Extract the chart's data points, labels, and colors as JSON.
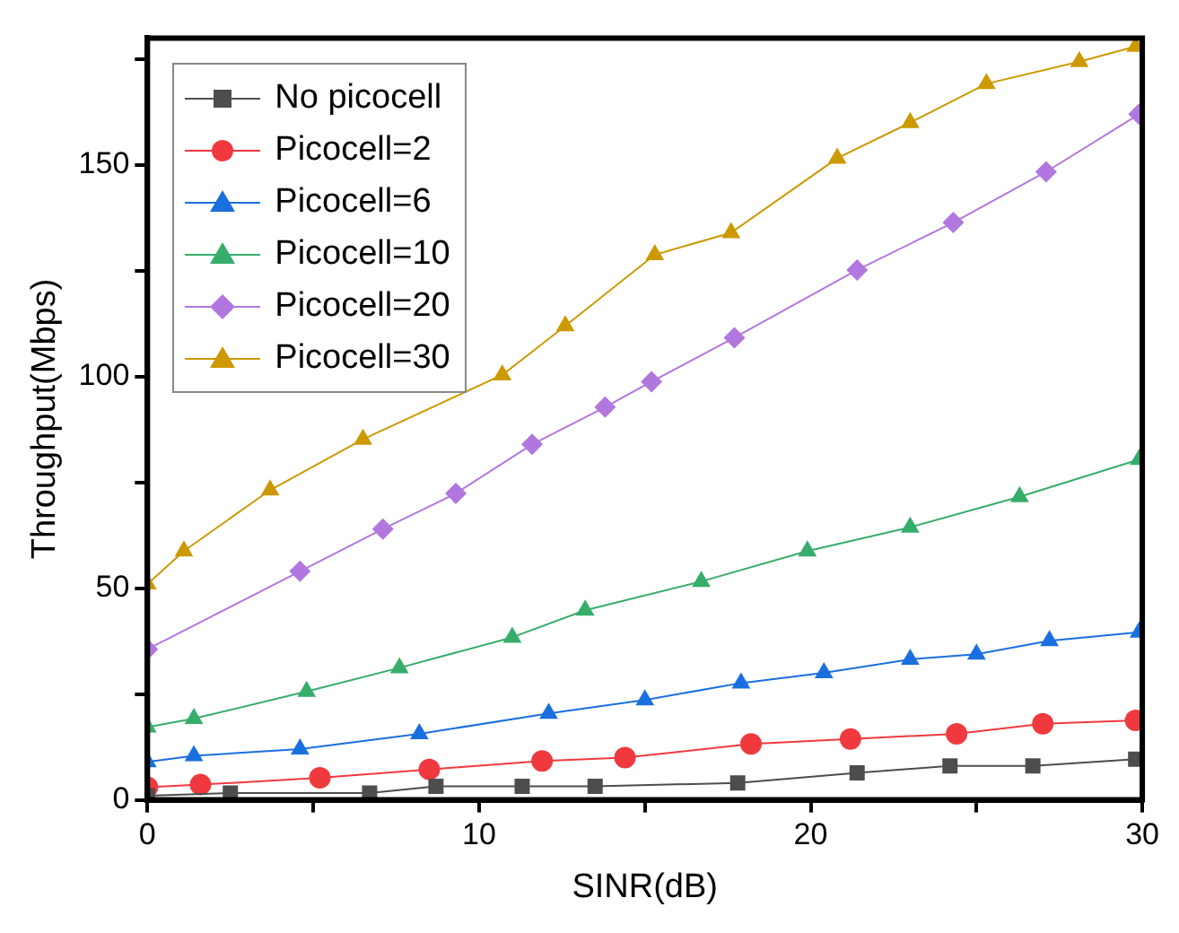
{
  "chart_data": {
    "type": "line",
    "xlabel": "SINR(dB)",
    "ylabel": "Throughput(Mbps)",
    "xlim": [
      0,
      30
    ],
    "ylim": [
      0,
      180
    ],
    "xticks": [
      0,
      {
        "value": 5,
        "label": null
      },
      10,
      {
        "value": 15,
        "label": null
      },
      20,
      {
        "value": 25,
        "label": null
      },
      30
    ],
    "yticks": [
      0,
      {
        "value": 25,
        "label": null
      },
      50,
      {
        "value": 75,
        "label": null
      },
      100,
      {
        "value": 125,
        "label": null
      },
      150,
      {
        "value": 175,
        "label": null
      }
    ],
    "grid": false,
    "legend": "top left",
    "line_style": "solid",
    "series": [
      {
        "name": "No picocell",
        "color": "#4d4d4d",
        "marker": "square",
        "x": [
          0,
          2.5,
          6.7,
          8.7,
          11.3,
          13.5,
          17.8,
          21.4,
          24.2,
          26.7,
          29.8
        ],
        "values": [
          1,
          1.6,
          1.6,
          3.2,
          3.2,
          3.2,
          4,
          6.4,
          8,
          8,
          9.6
        ]
      },
      {
        "name": "Picocell=2",
        "color": "#f0393e",
        "marker": "circle",
        "x": [
          0,
          1.6,
          5.2,
          8.5,
          11.9,
          14.4,
          18.2,
          21.2,
          24.4,
          27,
          29.8
        ],
        "values": [
          3,
          3.6,
          5.2,
          7.2,
          9.2,
          10,
          13.2,
          14.4,
          15.6,
          18,
          18.8
        ]
      },
      {
        "name": "Picocell=6",
        "color": "#1a6fdf",
        "marker": "triangle",
        "x": [
          0,
          1.4,
          4.6,
          8.2,
          12.1,
          15,
          17.9,
          20.4,
          23,
          25,
          27.2,
          29.9
        ],
        "values": [
          9,
          10.4,
          12,
          15.6,
          20.4,
          23.6,
          27.6,
          30,
          33.2,
          34.4,
          37.6,
          39.6
        ]
      },
      {
        "name": "Picocell=10",
        "color": "#37ad6b",
        "marker": "triangle",
        "x": [
          0,
          1.4,
          4.8,
          7.6,
          11,
          13.2,
          16.7,
          19.9,
          23,
          26.3,
          29.9
        ],
        "values": [
          17.2,
          19.2,
          25.6,
          31.2,
          38.4,
          44.8,
          51.6,
          58.8,
          64.4,
          71.6,
          80.4
        ]
      },
      {
        "name": "Picocell=20",
        "color": "#b177de",
        "marker": "diamond",
        "x": [
          0,
          4.6,
          7.1,
          9.3,
          11.6,
          13.8,
          15.2,
          17.7,
          21.4,
          24.3,
          27.1,
          29.9
        ],
        "values": [
          35.6,
          54,
          64,
          72.4,
          84,
          92.8,
          98.8,
          109.2,
          125.2,
          136.4,
          148.4,
          162
        ]
      },
      {
        "name": "Picocell=30",
        "color": "#cc9900",
        "marker": "triangle",
        "x": [
          0,
          1.1,
          3.7,
          6.5,
          10.7,
          12.6,
          15.3,
          17.6,
          20.8,
          23,
          25.3,
          28.1,
          29.8
        ],
        "values": [
          51,
          58.8,
          73.2,
          85.2,
          100.4,
          112,
          128.8,
          134,
          151.6,
          160,
          169.2,
          174.4,
          178
        ]
      }
    ]
  }
}
